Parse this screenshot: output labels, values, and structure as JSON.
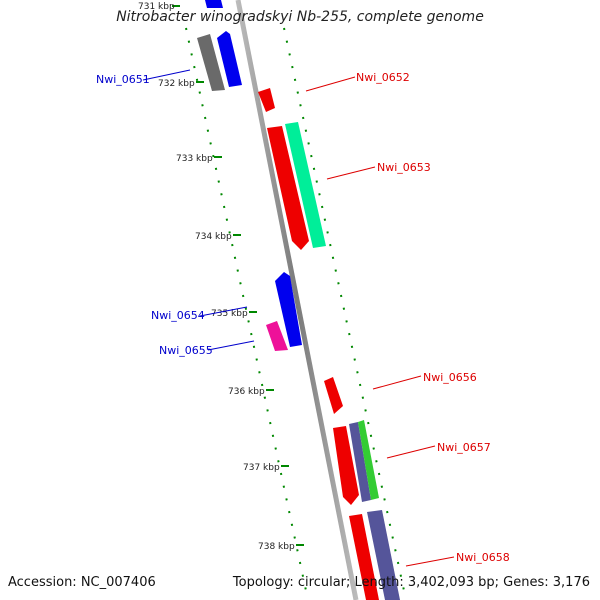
{
  "title": "Nitrobacter winogradskyi Nb-255, complete genome",
  "footer": {
    "accession": "Accession: NC_007406",
    "topology": "Topology: circular; Length: 3,402,093 bp; Genes: 3,176"
  },
  "ticks": [
    {
      "label": "731 kbp"
    },
    {
      "label": "732 kbp"
    },
    {
      "label": "733 kbp"
    },
    {
      "label": "734 kbp"
    },
    {
      "label": "735 kbp"
    },
    {
      "label": "736 kbp"
    },
    {
      "label": "737 kbp"
    },
    {
      "label": "738 kbp"
    }
  ],
  "genes": [
    {
      "label": "Nwi_0651",
      "color": "#0000cc"
    },
    {
      "label": "Nwi_0652",
      "color": "#dd0000"
    },
    {
      "label": "Nwi_0653",
      "color": "#dd0000"
    },
    {
      "label": "Nwi_0654",
      "color": "#0000cc"
    },
    {
      "label": "Nwi_0655",
      "color": "#0000cc"
    },
    {
      "label": "Nwi_0656",
      "color": "#dd0000"
    },
    {
      "label": "Nwi_0657",
      "color": "#dd0000"
    },
    {
      "label": "Nwi_0658",
      "color": "#dd0000"
    }
  ],
  "colors": {
    "backbone": "#888888",
    "tick": "#008800",
    "red": "#ff0000",
    "blue": "#0000ee",
    "teal": "#00ee99",
    "gray": "#666666",
    "magenta": "#ee1199",
    "slate": "#55559a",
    "green": "#33cc33"
  }
}
